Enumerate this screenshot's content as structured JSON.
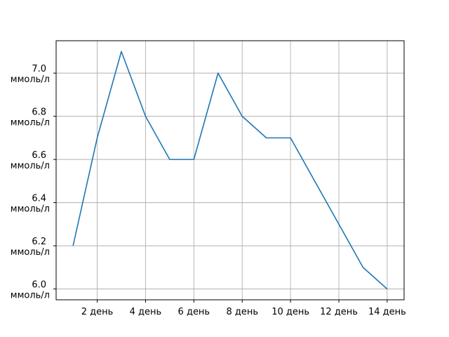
{
  "chart_data": {
    "type": "line",
    "title": "",
    "xlabel": "",
    "ylabel": "",
    "grid": true,
    "legend": "none",
    "x": [
      1,
      2,
      3,
      4,
      5,
      6,
      7,
      8,
      9,
      10,
      11,
      12,
      13,
      14
    ],
    "series": [
      {
        "color": "#1f77b4",
        "values": [
          6.2,
          6.7,
          7.1,
          6.8,
          6.6,
          6.6,
          7.0,
          6.8,
          6.7,
          6.7,
          6.5,
          6.3,
          6.1,
          6.0
        ]
      }
    ],
    "xlim": [
      0.3,
      14.7
    ],
    "ylim": [
      5.95,
      7.15
    ],
    "x_ticks": [
      {
        "value": 2,
        "label": "2 день"
      },
      {
        "value": 4,
        "label": "4 день"
      },
      {
        "value": 6,
        "label": "6 день"
      },
      {
        "value": 8,
        "label": "8 день"
      },
      {
        "value": 10,
        "label": "10 день"
      },
      {
        "value": 12,
        "label": "12 день"
      },
      {
        "value": 14,
        "label": "14 день"
      }
    ],
    "y_ticks": [
      {
        "value": 6.0,
        "label": [
          "6.0",
          "ммоль/л"
        ]
      },
      {
        "value": 6.2,
        "label": [
          "6.2",
          "ммоль/л"
        ]
      },
      {
        "value": 6.4,
        "label": [
          "6.4",
          "ммоль/л"
        ]
      },
      {
        "value": 6.6,
        "label": [
          "6.6",
          "ммоль/л"
        ]
      },
      {
        "value": 6.8,
        "label": [
          "6.8",
          "ммоль/л"
        ]
      },
      {
        "value": 7.0,
        "label": [
          "7.0",
          "ммоль/л"
        ]
      }
    ]
  }
}
